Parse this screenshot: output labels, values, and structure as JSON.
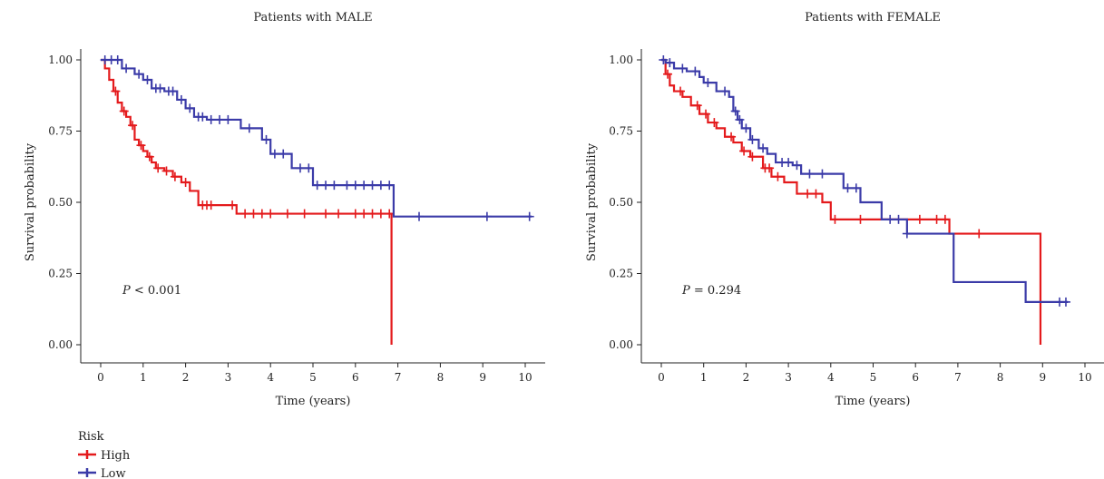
{
  "colors": {
    "High": "#e41a1c",
    "Low": "#3b3ba8"
  },
  "legend": {
    "title": "Risk",
    "items": [
      {
        "label": "High",
        "color": "#e41a1c"
      },
      {
        "label": "Low",
        "color": "#3b3ba8"
      }
    ]
  },
  "chart_data": [
    {
      "type": "line",
      "title": "Patients with MALE",
      "xlabel": "Time (years)",
      "ylabel": "Survival probability",
      "xlim": [
        0,
        10
      ],
      "ylim": [
        0,
        1
      ],
      "xticks": [
        "0",
        "1",
        "2",
        "3",
        "4",
        "5",
        "6",
        "7",
        "8",
        "9",
        "10"
      ],
      "yticks": [
        "0.00",
        "0.25",
        "0.50",
        "0.75",
        "1.00"
      ],
      "annotation": {
        "italic": "P",
        "rest": " < 0.001"
      },
      "series": [
        {
          "name": "High",
          "step_x": [
            0,
            0.1,
            0.2,
            0.3,
            0.4,
            0.5,
            0.6,
            0.7,
            0.8,
            0.9,
            1.0,
            1.1,
            1.2,
            1.3,
            1.5,
            1.7,
            1.9,
            2.1,
            2.3,
            3.2,
            6.85
          ],
          "step_y": [
            1.0,
            0.97,
            0.93,
            0.89,
            0.85,
            0.82,
            0.8,
            0.77,
            0.72,
            0.7,
            0.68,
            0.66,
            0.64,
            0.62,
            0.61,
            0.59,
            0.57,
            0.54,
            0.49,
            0.46,
            0.0
          ],
          "censor_x": [
            0.35,
            0.55,
            0.75,
            0.95,
            1.15,
            1.35,
            1.55,
            1.75,
            2.0,
            2.4,
            2.5,
            2.6,
            3.1,
            3.4,
            3.6,
            3.8,
            4.0,
            4.4,
            4.8,
            5.3,
            5.6,
            6.0,
            6.2,
            6.4,
            6.6,
            6.8
          ],
          "end_x": 6.85
        },
        {
          "name": "Low",
          "step_x": [
            0,
            0.5,
            0.8,
            1.0,
            1.2,
            1.5,
            1.8,
            2.0,
            2.2,
            2.5,
            3.3,
            3.8,
            4.0,
            4.5,
            5.0,
            6.9
          ],
          "step_y": [
            1.0,
            0.97,
            0.95,
            0.93,
            0.9,
            0.89,
            0.86,
            0.83,
            0.8,
            0.79,
            0.76,
            0.72,
            0.67,
            0.62,
            0.56,
            0.45
          ],
          "censor_x": [
            0.1,
            0.25,
            0.4,
            0.6,
            0.9,
            1.1,
            1.3,
            1.4,
            1.6,
            1.7,
            1.9,
            2.1,
            2.3,
            2.4,
            2.6,
            2.8,
            3.0,
            3.5,
            3.9,
            4.1,
            4.3,
            4.7,
            4.9,
            5.1,
            5.3,
            5.5,
            5.8,
            6.0,
            6.2,
            6.4,
            6.6,
            6.8,
            7.5,
            9.1,
            10.1
          ],
          "end_x": 10.15
        }
      ]
    },
    {
      "type": "line",
      "title": "Patients with FEMALE",
      "xlabel": "Time (years)",
      "ylabel": "Survival probability",
      "xlim": [
        0,
        10
      ],
      "ylim": [
        0,
        1
      ],
      "xticks": [
        "0",
        "1",
        "2",
        "3",
        "4",
        "5",
        "6",
        "7",
        "8",
        "9",
        "10"
      ],
      "yticks": [
        "0.00",
        "0.25",
        "0.50",
        "0.75",
        "1.00"
      ],
      "annotation": {
        "italic": "P",
        "rest": " = 0.294"
      },
      "series": [
        {
          "name": "High",
          "step_x": [
            0,
            0.1,
            0.2,
            0.3,
            0.5,
            0.7,
            0.9,
            1.1,
            1.3,
            1.5,
            1.7,
            1.9,
            2.1,
            2.4,
            2.6,
            2.9,
            3.2,
            3.8,
            4.0,
            6.8,
            8.95
          ],
          "step_y": [
            1.0,
            0.95,
            0.91,
            0.89,
            0.87,
            0.84,
            0.81,
            0.78,
            0.76,
            0.73,
            0.71,
            0.68,
            0.66,
            0.62,
            0.59,
            0.57,
            0.53,
            0.5,
            0.44,
            0.39,
            0.26
          ],
          "censor_x": [
            0.15,
            0.45,
            0.85,
            1.05,
            1.25,
            1.65,
            1.95,
            2.15,
            2.45,
            2.55,
            2.75,
            3.45,
            3.65,
            4.1,
            4.7,
            6.1,
            6.5,
            6.7,
            7.5
          ],
          "final_drop": {
            "x": 8.95,
            "y": 0.0
          },
          "end_x": 8.95
        },
        {
          "name": "Low",
          "step_x": [
            0,
            0.1,
            0.3,
            0.6,
            0.9,
            1.0,
            1.3,
            1.6,
            1.7,
            1.8,
            1.9,
            2.1,
            2.3,
            2.5,
            2.7,
            3.1,
            3.3,
            4.0,
            4.3,
            4.7,
            5.2,
            5.8,
            6.9,
            8.6,
            9.55
          ],
          "step_y": [
            1.0,
            0.99,
            0.97,
            0.96,
            0.94,
            0.92,
            0.89,
            0.87,
            0.82,
            0.79,
            0.76,
            0.72,
            0.69,
            0.67,
            0.64,
            0.63,
            0.6,
            0.6,
            0.55,
            0.5,
            0.44,
            0.39,
            0.22,
            0.15,
            0.15
          ],
          "censor_x": [
            0.05,
            0.2,
            0.5,
            0.8,
            1.1,
            1.5,
            1.75,
            1.85,
            2.0,
            2.15,
            2.4,
            2.85,
            3.0,
            3.2,
            3.5,
            3.8,
            4.4,
            4.6,
            5.4,
            5.6,
            5.8,
            9.4,
            9.55
          ],
          "end_x": 9.6
        }
      ]
    }
  ]
}
